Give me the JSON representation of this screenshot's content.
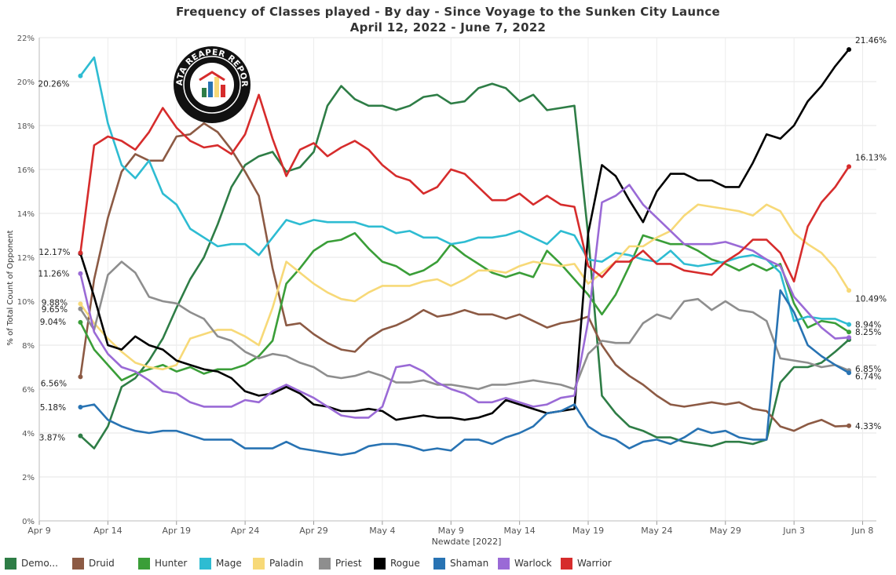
{
  "title": "Frequency of Classes played - By day - Since Voyage to the Sunken City Launce",
  "subtitle": "April 12, 2022 - June 7, 2022",
  "logo_text": "DATA REAPER REPORT",
  "chart_data": {
    "type": "line",
    "title": "Frequency of Classes played - By day - Since Voyage to the Sunken City Launce",
    "subtitle": "April 12, 2022 - June 7, 2022",
    "xlabel": "Newdate [2022]",
    "ylabel": "% of Total Count of Opponent",
    "x_range": [
      "2022-04-09",
      "2022-06-09"
    ],
    "ylim": [
      0,
      22
    ],
    "y_ticks": [
      "0%",
      "2%",
      "4%",
      "6%",
      "8%",
      "10%",
      "12%",
      "14%",
      "16%",
      "18%",
      "20%",
      "22%"
    ],
    "x_ticks": [
      {
        "date": "2022-04-09",
        "label": "Apr 9"
      },
      {
        "date": "2022-04-14",
        "label": "Apr 14"
      },
      {
        "date": "2022-04-19",
        "label": "Apr 19"
      },
      {
        "date": "2022-04-24",
        "label": "Apr 24"
      },
      {
        "date": "2022-04-29",
        "label": "Apr 29"
      },
      {
        "date": "2022-05-04",
        "label": "May 4"
      },
      {
        "date": "2022-05-09",
        "label": "May 9"
      },
      {
        "date": "2022-05-14",
        "label": "May 14"
      },
      {
        "date": "2022-05-19",
        "label": "May 19"
      },
      {
        "date": "2022-05-24",
        "label": "May 24"
      },
      {
        "date": "2022-05-29",
        "label": "May 29"
      },
      {
        "date": "2022-06-03",
        "label": "Jun 3"
      },
      {
        "date": "2022-06-08",
        "label": "Jun 8"
      }
    ],
    "grid": true,
    "legend": "bottom",
    "x_start": "2022-04-12",
    "x_step_days": 1,
    "series": [
      {
        "name": "Demo...",
        "color": "#2e7d46",
        "start_label": "3.87%",
        "values": [
          3.87,
          3.3,
          4.3,
          6.1,
          6.5,
          7.3,
          8.3,
          9.7,
          11.0,
          12.0,
          13.5,
          15.2,
          16.2,
          16.6,
          16.8,
          15.9,
          16.1,
          16.8,
          18.9,
          19.8,
          19.2,
          18.9,
          18.9,
          18.7,
          18.9,
          19.3,
          19.4,
          19.0,
          19.1,
          19.7,
          19.9,
          19.7,
          19.1,
          19.4,
          18.7,
          18.8,
          18.9,
          13.0,
          5.7,
          4.9,
          4.3,
          4.1,
          3.8,
          3.8,
          3.6,
          3.5,
          3.4,
          3.6,
          3.6,
          3.5,
          3.7,
          6.3,
          7.0,
          7.0,
          7.2,
          7.7,
          8.25
        ],
        "end_label": "8.25%"
      },
      {
        "name": "Druid",
        "color": "#8c5a44",
        "start_label": "6.56%",
        "values": [
          6.56,
          11.0,
          13.8,
          15.9,
          16.7,
          16.4,
          16.4,
          17.5,
          17.6,
          18.1,
          17.7,
          16.9,
          15.9,
          14.8,
          11.5,
          8.9,
          9.0,
          8.5,
          8.1,
          7.8,
          7.7,
          8.3,
          8.7,
          8.9,
          9.2,
          9.6,
          9.3,
          9.4,
          9.6,
          9.4,
          9.4,
          9.2,
          9.4,
          9.1,
          8.8,
          9.0,
          9.1,
          9.3,
          8.0,
          7.1,
          6.6,
          6.2,
          5.7,
          5.3,
          5.2,
          5.3,
          5.4,
          5.3,
          5.4,
          5.1,
          5.0,
          4.3,
          4.1,
          4.4,
          4.6,
          4.3,
          4.33
        ],
        "end_label": "4.33%"
      },
      {
        "name": "Hunter",
        "color": "#3a9e38",
        "start_label": "9.04%",
        "values": [
          9.04,
          7.8,
          7.1,
          6.4,
          6.7,
          6.9,
          7.1,
          6.8,
          7.0,
          6.7,
          6.9,
          6.9,
          7.1,
          7.5,
          8.2,
          10.8,
          11.5,
          12.3,
          12.7,
          12.8,
          13.1,
          12.4,
          11.8,
          11.6,
          11.2,
          11.4,
          11.8,
          12.6,
          12.1,
          11.7,
          11.3,
          11.1,
          11.3,
          11.1,
          12.3,
          11.7,
          11.0,
          10.3,
          9.4,
          10.3,
          11.6,
          13.0,
          12.8,
          12.6,
          12.6,
          12.3,
          11.9,
          11.7,
          11.4,
          11.7,
          11.4,
          11.7,
          9.9,
          8.8,
          9.1,
          9.0,
          8.6
        ],
        "end_label": ""
      },
      {
        "name": "Mage",
        "color": "#2ebcd2",
        "start_label": "20.26%",
        "values": [
          20.26,
          21.1,
          18.1,
          16.2,
          15.6,
          16.4,
          14.9,
          14.4,
          13.3,
          12.9,
          12.5,
          12.6,
          12.6,
          12.1,
          12.9,
          13.7,
          13.5,
          13.7,
          13.6,
          13.6,
          13.6,
          13.4,
          13.4,
          13.1,
          13.2,
          12.9,
          12.9,
          12.6,
          12.7,
          12.9,
          12.9,
          13.0,
          13.2,
          12.9,
          12.6,
          13.2,
          13.0,
          11.9,
          11.8,
          12.2,
          12.1,
          11.9,
          11.8,
          12.3,
          11.7,
          11.6,
          11.7,
          11.8,
          12.0,
          12.1,
          11.9,
          11.3,
          9.1,
          9.3,
          9.2,
          9.2,
          8.94
        ],
        "end_label": "8.94%"
      },
      {
        "name": "Paladin",
        "color": "#f7d978",
        "start_label": "9.88%",
        "values": [
          9.88,
          9.0,
          8.3,
          7.7,
          7.2,
          7.0,
          6.9,
          7.1,
          8.3,
          8.5,
          8.7,
          8.7,
          8.4,
          8.0,
          9.7,
          11.8,
          11.3,
          10.8,
          10.4,
          10.1,
          10.0,
          10.4,
          10.7,
          10.7,
          10.7,
          10.9,
          11.0,
          10.7,
          11.0,
          11.4,
          11.4,
          11.3,
          11.6,
          11.8,
          11.7,
          11.6,
          11.7,
          10.8,
          11.3,
          11.8,
          12.5,
          12.5,
          12.9,
          13.2,
          13.9,
          14.4,
          14.3,
          14.2,
          14.1,
          13.9,
          14.4,
          14.1,
          13.1,
          12.6,
          12.2,
          11.5,
          10.49
        ],
        "end_label": "10.49%"
      },
      {
        "name": "Priest",
        "color": "#8e8e8e",
        "start_label": "9.65%",
        "values": [
          9.65,
          8.7,
          11.2,
          11.8,
          11.3,
          10.2,
          10.0,
          9.9,
          9.5,
          9.2,
          8.4,
          8.2,
          7.7,
          7.4,
          7.6,
          7.5,
          7.2,
          7.0,
          6.6,
          6.5,
          6.6,
          6.8,
          6.6,
          6.3,
          6.3,
          6.4,
          6.2,
          6.2,
          6.1,
          6.0,
          6.2,
          6.2,
          6.3,
          6.4,
          6.3,
          6.2,
          6.0,
          7.6,
          8.2,
          8.1,
          8.1,
          9.0,
          9.4,
          9.2,
          10.0,
          10.1,
          9.6,
          10.0,
          9.6,
          9.5,
          9.1,
          7.4,
          7.3,
          7.2,
          7.0,
          7.1,
          6.85
        ],
        "end_label": "6.85%"
      },
      {
        "name": "Rogue",
        "color": "#000000",
        "start_label": "12.17%",
        "values": [
          12.17,
          10.2,
          8.0,
          7.8,
          8.4,
          8.0,
          7.8,
          7.3,
          7.1,
          6.9,
          6.8,
          6.5,
          5.9,
          5.7,
          5.8,
          6.1,
          5.8,
          5.3,
          5.2,
          5.0,
          5.0,
          5.1,
          5.0,
          4.6,
          4.7,
          4.8,
          4.7,
          4.7,
          4.6,
          4.7,
          4.9,
          5.5,
          5.3,
          5.1,
          4.9,
          5.0,
          5.1,
          13.1,
          16.2,
          15.7,
          14.6,
          13.6,
          15.0,
          15.8,
          15.8,
          15.5,
          15.5,
          15.2,
          15.2,
          16.3,
          17.6,
          17.4,
          18.0,
          19.1,
          19.8,
          20.7,
          21.46
        ],
        "end_label": "21.46%"
      },
      {
        "name": "Shaman",
        "color": "#2873b3",
        "start_label": "5.18%",
        "values": [
          5.18,
          5.3,
          4.6,
          4.3,
          4.1,
          4.0,
          4.1,
          4.1,
          3.9,
          3.7,
          3.7,
          3.7,
          3.3,
          3.3,
          3.3,
          3.6,
          3.3,
          3.2,
          3.1,
          3.0,
          3.1,
          3.4,
          3.5,
          3.5,
          3.4,
          3.2,
          3.3,
          3.2,
          3.7,
          3.7,
          3.5,
          3.8,
          4.0,
          4.3,
          4.9,
          5.0,
          5.3,
          4.3,
          3.9,
          3.7,
          3.3,
          3.6,
          3.7,
          3.5,
          3.8,
          4.2,
          4.0,
          4.1,
          3.8,
          3.7,
          3.7,
          10.5,
          9.5,
          8.0,
          7.5,
          7.1,
          6.74
        ],
        "end_label": "6.74%"
      },
      {
        "name": "Warlock",
        "color": "#9a6ad6",
        "start_label": "11.26%",
        "values": [
          11.26,
          8.6,
          7.6,
          7.0,
          6.8,
          6.4,
          5.9,
          5.8,
          5.4,
          5.2,
          5.2,
          5.2,
          5.5,
          5.4,
          5.9,
          6.2,
          5.9,
          5.6,
          5.2,
          4.8,
          4.7,
          4.7,
          5.2,
          7.0,
          7.1,
          6.8,
          6.3,
          6.0,
          5.8,
          5.4,
          5.4,
          5.6,
          5.4,
          5.2,
          5.3,
          5.6,
          5.7,
          9.1,
          14.5,
          14.8,
          15.3,
          14.4,
          13.8,
          13.2,
          12.6,
          12.6,
          12.6,
          12.7,
          12.5,
          12.3,
          11.9,
          11.6,
          10.2,
          9.5,
          8.8,
          8.3,
          8.35
        ],
        "end_label": ""
      },
      {
        "name": "Warrior",
        "color": "#d62c2c",
        "start_label": "",
        "values": [
          12.2,
          17.1,
          17.5,
          17.3,
          16.9,
          17.7,
          18.8,
          17.9,
          17.3,
          17.0,
          17.1,
          16.7,
          17.6,
          19.4,
          17.4,
          15.7,
          16.9,
          17.2,
          16.6,
          17.0,
          17.3,
          16.9,
          16.2,
          15.7,
          15.5,
          14.9,
          15.2,
          16.0,
          15.8,
          15.2,
          14.6,
          14.6,
          14.9,
          14.4,
          14.8,
          14.4,
          14.3,
          11.6,
          11.1,
          11.8,
          11.8,
          12.3,
          11.7,
          11.7,
          11.4,
          11.3,
          11.2,
          11.8,
          12.2,
          12.8,
          12.8,
          12.2,
          10.9,
          13.4,
          14.5,
          15.2,
          16.13
        ],
        "end_label": "16.13%"
      }
    ]
  }
}
